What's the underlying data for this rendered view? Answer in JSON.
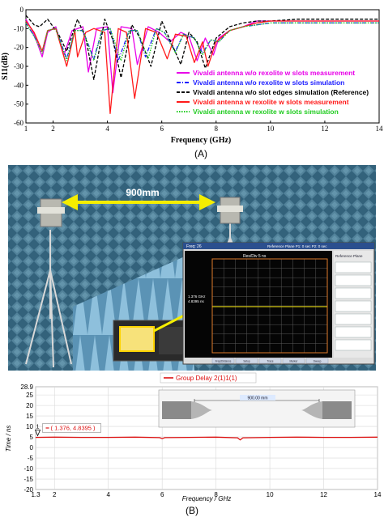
{
  "chart_data": [
    {
      "type": "line",
      "panel_label": "(A)",
      "xlabel": "Frequency (GHz)",
      "ylabel": "S11(dB)",
      "xlim": [
        1,
        14
      ],
      "ylim": [
        -60,
        0
      ],
      "x_ticks": [
        "1",
        "2",
        "4",
        "6",
        "8",
        "10",
        "12",
        "14"
      ],
      "y_ticks": [
        "0",
        "-10",
        "-20",
        "-30",
        "-40",
        "-50",
        "-60"
      ],
      "grid": false,
      "legend_position": "right, mid-lower",
      "series": [
        {
          "name": "Vivaldi antenna w/o rexolite w slots measurement",
          "color": "#e800e8",
          "style": "solid",
          "x": [
            1.0,
            1.3,
            1.6,
            1.8,
            2.1,
            2.4,
            2.7,
            3.1,
            3.3,
            3.6,
            4.0,
            4.2,
            4.5,
            4.9,
            5.1,
            5.5,
            5.9,
            6.3,
            6.7,
            7.0,
            7.3,
            7.6,
            7.9,
            8.1,
            8.5,
            9.0,
            9.5,
            10.0,
            11.0,
            12.0,
            13.0,
            14.0
          ],
          "y": [
            -5,
            -13,
            -25,
            -12,
            -9,
            -24,
            -11,
            -9,
            -33,
            -10,
            -9,
            -44,
            -9,
            -10,
            -29,
            -9,
            -12,
            -17,
            -12,
            -14,
            -27,
            -15,
            -24,
            -15,
            -11,
            -9,
            -6,
            -6,
            -6,
            -6,
            -6,
            -6
          ]
        },
        {
          "name": "Vivaldi antenna w/o rexolite w slots simulation",
          "color": "#1a1aff",
          "style": "dashdot",
          "x": [
            1.0,
            1.3,
            1.6,
            1.8,
            2.1,
            2.5,
            2.8,
            3.1,
            3.5,
            3.8,
            4.1,
            4.4,
            4.8,
            5.1,
            5.4,
            5.8,
            6.1,
            6.5,
            6.8,
            7.2,
            7.5,
            7.8,
            8.1,
            8.5,
            9.0,
            9.5,
            10.0,
            11.0,
            12.0,
            13.0,
            14.0
          ],
          "y": [
            -7,
            -14,
            -22,
            -11,
            -10,
            -26,
            -11,
            -11,
            -26,
            -11,
            -10,
            -27,
            -11,
            -11,
            -25,
            -10,
            -12,
            -22,
            -13,
            -15,
            -23,
            -16,
            -17,
            -11,
            -9,
            -8,
            -7,
            -7,
            -7,
            -7,
            -7
          ]
        },
        {
          "name": "Vivaldi antenna w/o slot edges simulation (Reference)",
          "color": "#000000",
          "style": "dashed",
          "x": [
            1.0,
            1.3,
            1.5,
            1.8,
            2.2,
            2.5,
            2.9,
            3.2,
            3.5,
            3.9,
            4.2,
            4.5,
            4.9,
            5.2,
            5.6,
            6.0,
            6.3,
            6.7,
            7.0,
            7.3,
            7.6,
            8.0,
            8.5,
            9.0,
            9.5,
            10.0,
            11.0,
            12.0,
            13.0,
            14.0
          ],
          "y": [
            -3,
            -8,
            -9,
            -5,
            -13,
            -22,
            -5,
            -15,
            -37,
            -5,
            -16,
            -36,
            -8,
            -15,
            -30,
            -6,
            -16,
            -29,
            -12,
            -17,
            -31,
            -15,
            -9,
            -7,
            -6,
            -6,
            -5,
            -5,
            -5,
            -5
          ]
        },
        {
          "name": "Vivaldi antenna w rexolite w slots measurement",
          "color": "#ff1a1a",
          "style": "solid",
          "x": [
            1.0,
            1.3,
            1.6,
            1.8,
            2.1,
            2.5,
            2.8,
            2.9,
            3.2,
            3.5,
            3.9,
            4.1,
            4.4,
            4.7,
            5.0,
            5.4,
            5.8,
            6.2,
            6.5,
            6.9,
            7.2,
            7.5,
            7.7,
            8.0,
            8.5,
            9.0,
            9.5,
            10.0,
            11.0,
            12.0,
            13.0,
            14.0
          ],
          "y": [
            -6,
            -12,
            -22,
            -11,
            -10,
            -30,
            -11,
            -25,
            -12,
            -10,
            -12,
            -55,
            -10,
            -12,
            -47,
            -10,
            -12,
            -26,
            -13,
            -14,
            -28,
            -17,
            -30,
            -17,
            -11,
            -9,
            -7,
            -6,
            -6,
            -6,
            -6,
            -6
          ]
        },
        {
          "name": "Vivaldi antenna w rexolite w slots simulation",
          "color": "#22cc22",
          "style": "dotted",
          "x": [
            1.0,
            1.3,
            1.6,
            1.8,
            2.1,
            2.5,
            2.8,
            3.1,
            3.5,
            3.8,
            4.1,
            4.5,
            4.8,
            5.1,
            5.5,
            5.8,
            6.1,
            6.5,
            6.8,
            7.2,
            7.5,
            7.8,
            8.1,
            8.5,
            9.0,
            9.5,
            10.0,
            11.0,
            12.0,
            13.0,
            14.0
          ],
          "y": [
            -7,
            -14,
            -23,
            -11,
            -10,
            -27,
            -11,
            -11,
            -27,
            -11,
            -10,
            -27,
            -11,
            -11,
            -26,
            -10,
            -12,
            -23,
            -13,
            -15,
            -24,
            -16,
            -17,
            -11,
            -9,
            -8,
            -7,
            -7,
            -7,
            -7,
            -7
          ]
        }
      ]
    },
    {
      "type": "line",
      "panel_label": "(B)",
      "xlabel": "Frequency / GHz",
      "ylabel": "Time / ns",
      "xlim": [
        1.3,
        14
      ],
      "ylim": [
        -20,
        28.9
      ],
      "x_ticks": [
        "1.3",
        "2",
        "4",
        "6",
        "8",
        "10",
        "12",
        "14"
      ],
      "y_ticks": [
        "28.9",
        "25",
        "20",
        "15",
        "10",
        "5",
        "0",
        "-5",
        "-10",
        "-15",
        "-20"
      ],
      "grid": true,
      "legend_position": "top-center",
      "marker": {
        "label": "1",
        "text": "( 1.376, 4.8395 )",
        "x": 1.376,
        "y": 4.8395
      },
      "series": [
        {
          "name": "Group Delay 2(1)1(1)",
          "color": "#dd1111",
          "x": [
            1.3,
            2.0,
            3.0,
            4.0,
            5.0,
            5.9,
            6.0,
            6.1,
            7.0,
            8.0,
            8.8,
            8.9,
            9.0,
            10.0,
            11.0,
            12.0,
            13.0,
            14.0
          ],
          "y": [
            4.8,
            4.9,
            4.8,
            4.8,
            4.9,
            4.7,
            4.2,
            4.7,
            4.8,
            4.9,
            4.6,
            3.6,
            4.6,
            4.8,
            4.9,
            4.8,
            4.8,
            4.9
          ]
        }
      ]
    }
  ],
  "photo": {
    "distance_label": "900mm",
    "analyzer_screen": {
      "header_left": "Freq: 26",
      "header_right": "Reference Plane P1: 0 sec P2: 0 sec",
      "scale_label": "Res/Div 5 ns",
      "marker_left": "1.376 GHz",
      "marker_right": "4.8395 ns",
      "side_menu_title": "Reference Plane",
      "side_menu_items": [
        "",
        "",
        "",
        "",
        "",
        "",
        ""
      ],
      "bottom_tabs": [
        "Freq/Distance",
        "Setup",
        "Trace",
        "Marker",
        "Sweep"
      ]
    }
  },
  "inset": {
    "distance_label": "900.00 mm"
  }
}
